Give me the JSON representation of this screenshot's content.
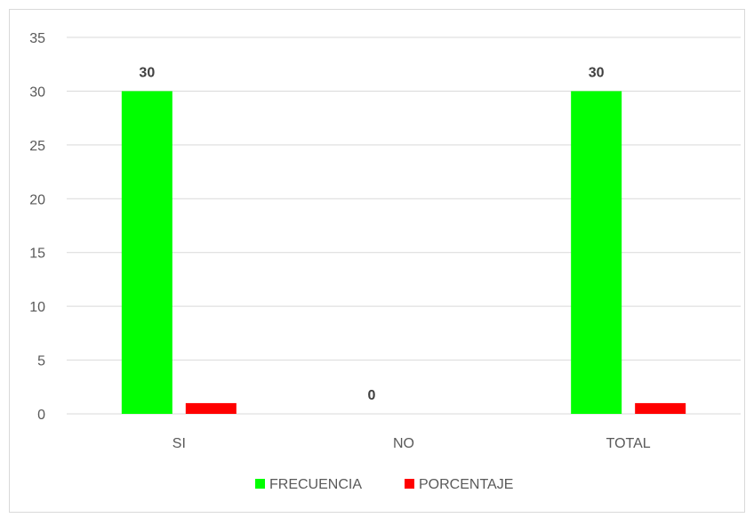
{
  "chart_data": {
    "type": "bar",
    "categories": [
      "SI",
      "NO",
      "TOTAL"
    ],
    "series": [
      {
        "name": "FRECUENCIA",
        "values": [
          30,
          0,
          30
        ],
        "color": "#00ff00",
        "labels": [
          "30",
          "0",
          "30"
        ]
      },
      {
        "name": "PORCENTAJE",
        "values": [
          1,
          0,
          1
        ],
        "color": "#ff0000"
      }
    ],
    "ylim": [
      0,
      35
    ],
    "yticks": [
      0,
      5,
      10,
      15,
      20,
      25,
      30,
      35
    ],
    "grid": true,
    "legend_position": "bottom"
  }
}
